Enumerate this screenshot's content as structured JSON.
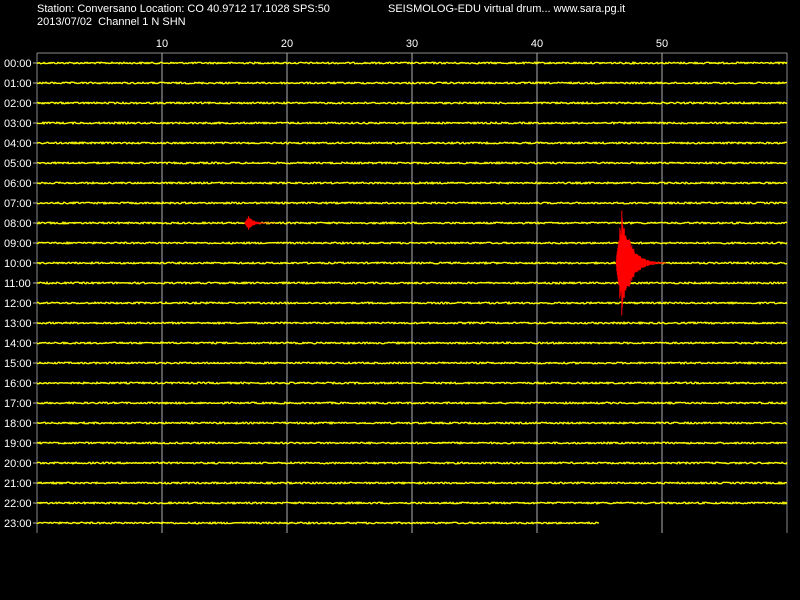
{
  "header": {
    "station_line": "Station: Conversano Location: CO 40.9712 17.1028 SPS:50",
    "date_line": "2013/07/02  Channel 1 N SHN",
    "right_title": "SEISMOLOG-EDU virtual drum... www.sara.pg.it"
  },
  "colors": {
    "background": "#000000",
    "trace": "#ffff00",
    "event": "#ff0000",
    "grid": "#ffffff",
    "text": "#ffffff"
  },
  "minute_ticks": [
    "10",
    "20",
    "30",
    "40",
    "50"
  ],
  "hour_labels": [
    "00:00",
    "01:00",
    "02:00",
    "03:00",
    "04:00",
    "05:00",
    "06:00",
    "07:00",
    "08:00",
    "09:00",
    "10:00",
    "11:00",
    "12:00",
    "13:00",
    "14:00",
    "15:00",
    "16:00",
    "17:00",
    "18:00",
    "19:00",
    "20:00",
    "21:00",
    "22:00",
    "23:00"
  ],
  "last_trace_end_minute": 45.0,
  "events": [
    {
      "hour_label": "08:00",
      "start_minute": 16.6,
      "duration_minutes": 2.5,
      "amplitude": 0.4,
      "name": "small-event"
    },
    {
      "hour_label": "10:00",
      "start_minute": 46.3,
      "duration_minutes": 4.0,
      "amplitude": 3.0,
      "name": "large-event"
    }
  ]
}
